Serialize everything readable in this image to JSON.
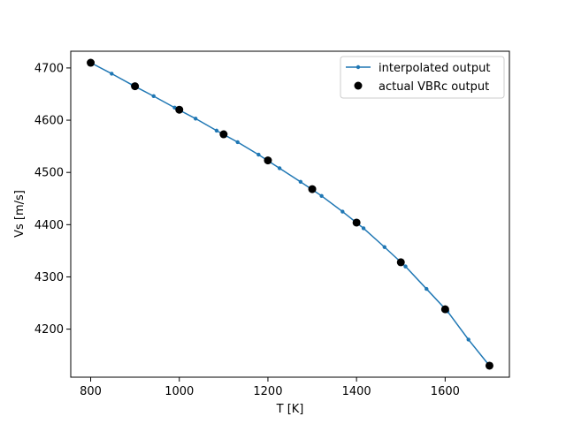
{
  "chart_data": {
    "type": "line",
    "title": "",
    "xlabel": "T [K]",
    "ylabel": "Vs [m/s]",
    "xlim": [
      755,
      1745
    ],
    "ylim": [
      4108,
      4732
    ],
    "xticks": [
      800,
      1000,
      1200,
      1400,
      1600
    ],
    "yticks": [
      4200,
      4300,
      4400,
      4500,
      4600,
      4700
    ],
    "grid": false,
    "legend_position": "top-right",
    "series": [
      {
        "name": "interpolated output",
        "color": "#1f77b4",
        "style": "line-with-small-markers",
        "x": [
          800,
          847.4,
          894.7,
          942.1,
          989.5,
          1036.8,
          1084.2,
          1131.6,
          1178.9,
          1226.3,
          1273.7,
          1321.1,
          1368.4,
          1415.8,
          1463.2,
          1510.5,
          1557.9,
          1605.3,
          1652.6,
          1700
        ],
        "y": [
          4710,
          4689,
          4667,
          4646,
          4624,
          4603,
          4580,
          4558,
          4534,
          4508,
          4482,
          4455,
          4425,
          4393,
          4357,
          4320,
          4277,
          4234,
          4180,
          4130
        ]
      },
      {
        "name": "actual VBRc output",
        "color": "#000000",
        "style": "markers",
        "x": [
          800,
          900,
          1000,
          1100,
          1200,
          1300,
          1400,
          1500,
          1600,
          1700
        ],
        "y": [
          4710,
          4665,
          4620,
          4573,
          4523,
          4468,
          4404,
          4328,
          4238,
          4130
        ]
      }
    ]
  }
}
